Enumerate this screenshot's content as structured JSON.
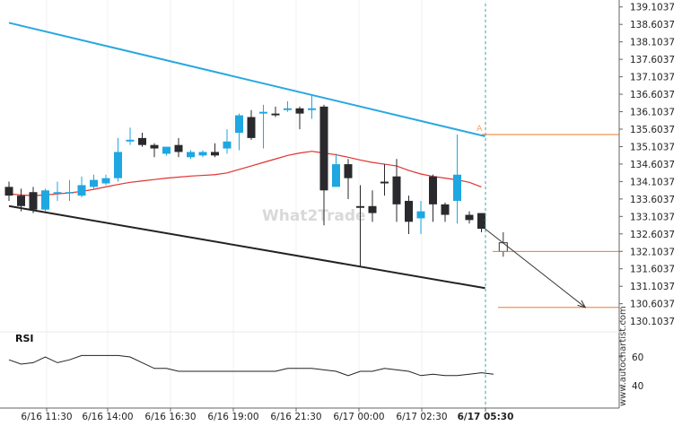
{
  "chart_data": {
    "type": "candlestick",
    "y_ticks": [
      "139.1037",
      "138.6037",
      "138.1037",
      "137.6037",
      "137.1037",
      "136.6037",
      "136.1037",
      "135.6037",
      "135.1037",
      "134.6037",
      "134.1037",
      "133.6037",
      "133.1037",
      "132.6037",
      "132.1037",
      "131.6037",
      "131.1037",
      "130.6037",
      "130.1037"
    ],
    "x_ticks": [
      "6/16 11:30",
      "6/16 14:00",
      "6/16 16:30",
      "6/16 19:00",
      "6/16 21:30",
      "6/17 00:00",
      "6/17 02:30",
      "6/17 05:30"
    ],
    "highlight_x_tick": "6/17 05:30",
    "price_range": [
      129.85,
      139.2
    ],
    "candles": [
      {
        "o": 133.95,
        "h": 134.1,
        "c": 133.7,
        "l": 133.55
      },
      {
        "o": 133.7,
        "h": 133.9,
        "c": 133.4,
        "l": 133.25
      },
      {
        "o": 133.8,
        "h": 133.95,
        "c": 133.3,
        "l": 133.2
      },
      {
        "o": 133.3,
        "h": 133.9,
        "c": 133.85,
        "l": 133.25
      },
      {
        "o": 133.8,
        "h": 134.1,
        "c": 133.8,
        "l": 133.55
      },
      {
        "o": 133.8,
        "h": 134.15,
        "c": 133.8,
        "l": 133.55
      },
      {
        "o": 133.7,
        "h": 134.25,
        "c": 134.0,
        "l": 133.65
      },
      {
        "o": 133.95,
        "h": 134.3,
        "c": 134.15,
        "l": 133.9
      },
      {
        "o": 134.05,
        "h": 134.3,
        "c": 134.2,
        "l": 134.0
      },
      {
        "o": 134.2,
        "h": 135.35,
        "c": 134.95,
        "l": 134.1
      },
      {
        "o": 135.25,
        "h": 135.65,
        "c": 135.3,
        "l": 135.15
      },
      {
        "o": 135.35,
        "h": 135.5,
        "c": 135.15,
        "l": 135.1
      },
      {
        "o": 135.15,
        "h": 135.2,
        "c": 135.05,
        "l": 134.8
      },
      {
        "o": 134.9,
        "h": 135.1,
        "c": 135.1,
        "l": 134.85
      },
      {
        "o": 135.15,
        "h": 135.35,
        "c": 134.95,
        "l": 134.8
      },
      {
        "o": 134.8,
        "h": 135.0,
        "c": 134.95,
        "l": 134.75
      },
      {
        "o": 134.85,
        "h": 135.0,
        "c": 134.95,
        "l": 134.8
      },
      {
        "o": 134.95,
        "h": 135.2,
        "c": 134.85,
        "l": 134.8
      },
      {
        "o": 135.05,
        "h": 135.6,
        "c": 135.25,
        "l": 134.9
      },
      {
        "o": 135.5,
        "h": 136.05,
        "c": 136.0,
        "l": 135.0
      },
      {
        "o": 135.95,
        "h": 136.15,
        "c": 135.35,
        "l": 135.3
      },
      {
        "o": 136.05,
        "h": 136.3,
        "c": 136.1,
        "l": 135.05
      },
      {
        "o": 136.05,
        "h": 136.25,
        "c": 136.0,
        "l": 135.95
      },
      {
        "o": 136.15,
        "h": 136.4,
        "c": 136.2,
        "l": 136.1
      },
      {
        "o": 136.2,
        "h": 136.25,
        "c": 136.05,
        "l": 135.6
      },
      {
        "o": 136.15,
        "h": 136.6,
        "c": 136.2,
        "l": 135.9
      },
      {
        "o": 136.25,
        "h": 136.3,
        "c": 133.85,
        "l": 132.85
      },
      {
        "o": 133.95,
        "h": 134.9,
        "c": 134.6,
        "l": 133.95
      },
      {
        "o": 134.6,
        "h": 134.75,
        "c": 134.2,
        "l": 133.6
      },
      {
        "o": 133.4,
        "h": 134.0,
        "c": 133.35,
        "l": 131.65
      },
      {
        "o": 133.4,
        "h": 133.85,
        "c": 133.2,
        "l": 132.95
      },
      {
        "o": 134.1,
        "h": 134.6,
        "c": 134.05,
        "l": 133.7
      },
      {
        "o": 134.25,
        "h": 134.75,
        "c": 133.45,
        "l": 132.95
      },
      {
        "o": 133.55,
        "h": 133.7,
        "c": 132.95,
        "l": 132.6
      },
      {
        "o": 133.05,
        "h": 133.55,
        "c": 133.25,
        "l": 132.6
      },
      {
        "o": 134.25,
        "h": 134.3,
        "c": 133.45,
        "l": 132.95
      },
      {
        "o": 133.45,
        "h": 133.5,
        "c": 133.15,
        "l": 132.95
      },
      {
        "o": 133.55,
        "h": 135.45,
        "c": 134.3,
        "l": 132.9
      },
      {
        "o": 133.15,
        "h": 133.25,
        "c": 133.0,
        "l": 132.9
      },
      {
        "o": 133.2,
        "h": 133.2,
        "c": 132.75,
        "l": 132.65
      }
    ],
    "last_candle_marker": {
      "o": 132.35,
      "c": 132.1,
      "h": 132.65,
      "l": 131.95
    },
    "moving_average": [
      133.75,
      133.72,
      133.7,
      133.72,
      133.75,
      133.78,
      133.82,
      133.88,
      133.95,
      134.02,
      134.08,
      134.12,
      134.16,
      134.2,
      134.23,
      134.26,
      134.28,
      134.3,
      134.35,
      134.45,
      134.55,
      134.65,
      134.75,
      134.85,
      134.92,
      134.97,
      134.92,
      134.87,
      134.8,
      134.72,
      134.65,
      134.6,
      134.55,
      134.42,
      134.32,
      134.25,
      134.2,
      134.15,
      134.08,
      133.95
    ],
    "resistance_line": {
      "from": [
        0,
        138.65
      ],
      "to": [
        39.3,
        135.4
      ],
      "color": "#29a8e0"
    },
    "support_line": {
      "from": [
        0,
        133.4
      ],
      "to": [
        39.3,
        131.05
      ],
      "color": "#222222"
    },
    "target_levels": [
      135.45,
      132.1,
      130.5
    ],
    "projection_arrow": {
      "from": [
        39.3,
        132.75
      ],
      "to": [
        47.2,
        130.5
      ]
    },
    "rsi": {
      "label": "RSI",
      "ticks": [
        "60",
        "40"
      ],
      "values": [
        58,
        55,
        56,
        60,
        56,
        58,
        61,
        61,
        61,
        61,
        60,
        56,
        52,
        52,
        50,
        50,
        50,
        50,
        50,
        50,
        50,
        50,
        50,
        52,
        52,
        52,
        51,
        50,
        47,
        50,
        50,
        52,
        51,
        50,
        47,
        48,
        47,
        47,
        48,
        49,
        48
      ]
    },
    "markers": {
      "A": "A"
    },
    "watermark": "What2Trade",
    "brand": "www.autochartist.com",
    "colors": {
      "bull": "#1ea7e1",
      "bear": "#2a2a2e",
      "ma": "#e0322f",
      "level": "#f07828",
      "marker_a": "#f5a05a",
      "axis": "#666666",
      "current_time": "#3fa3a8"
    }
  }
}
